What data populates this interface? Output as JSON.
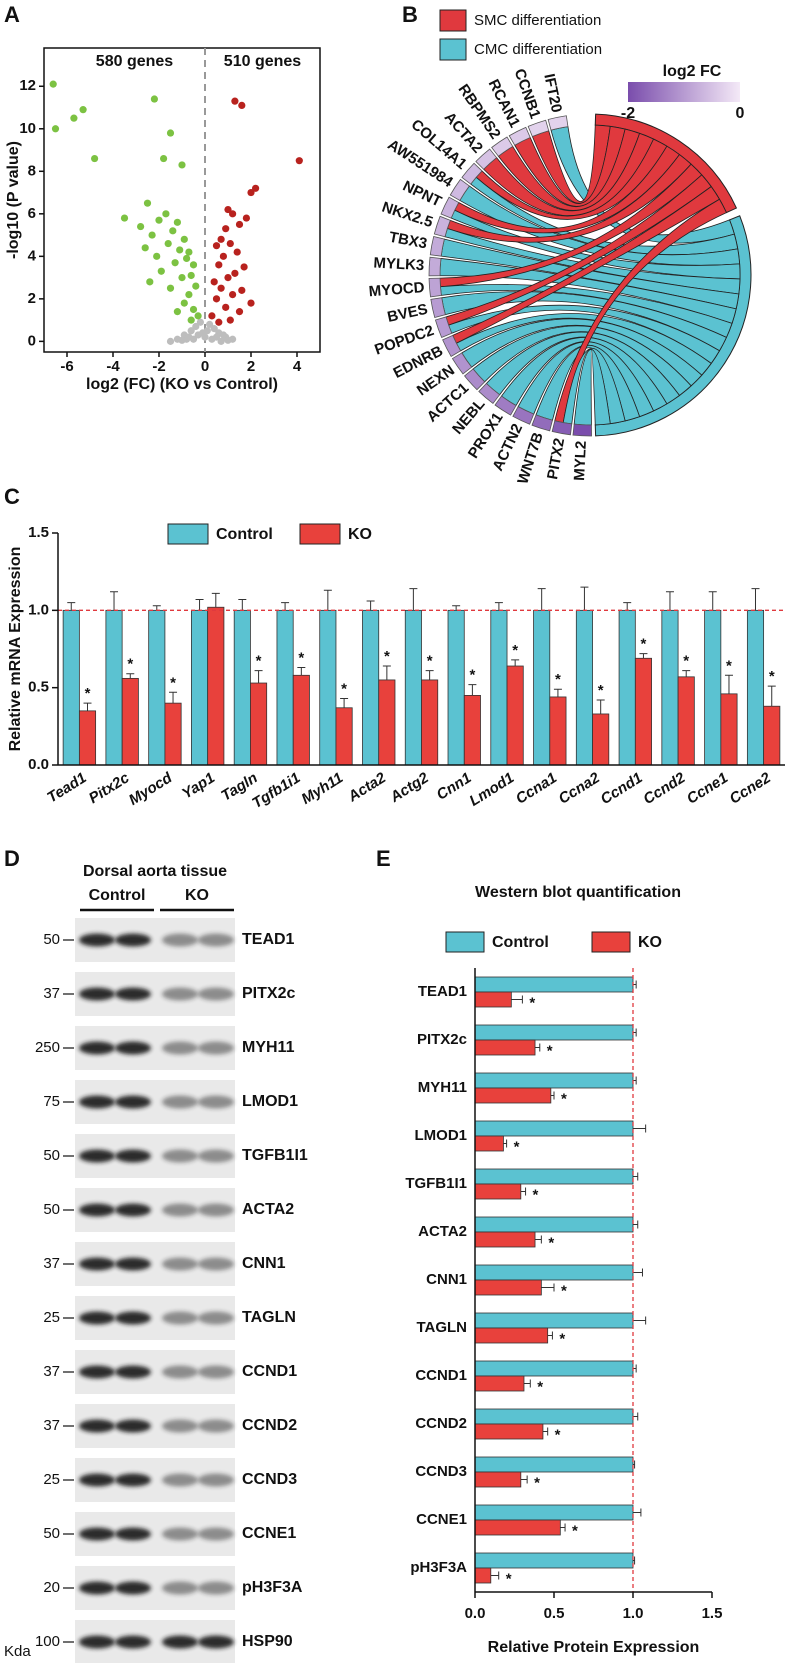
{
  "chart_data": [
    {
      "type": "scatter",
      "panel": "A",
      "xlabel": "log2 (FC) (KO vs Control)",
      "ylabel": "-log10 (P value)",
      "annotations": [
        "580 genes",
        "510 genes"
      ],
      "divider": 0,
      "xlim": [
        -7,
        5
      ],
      "ylim": [
        -0.5,
        13.8
      ],
      "xticks": [
        -6,
        -4,
        -2,
        0,
        2,
        4
      ],
      "yticks": [
        0,
        2,
        4,
        6,
        8,
        10,
        12
      ],
      "series": [
        {
          "color": "#bdbdbd",
          "x": [
            -1.2,
            -0.9,
            -0.6,
            -0.4,
            -0.2,
            0.0,
            0.2,
            0.4,
            0.6,
            0.9,
            1.2,
            -1.5,
            -0.8,
            -0.3,
            0.1,
            0.5,
            0.8,
            -0.5,
            0.3,
            -0.1,
            0.7,
            -0.7,
            1.0,
            -1.0
          ],
          "y": [
            0.1,
            0.3,
            0.5,
            0.7,
            0.9,
            0.2,
            0.8,
            0.6,
            0.4,
            0.2,
            0.1,
            0.0,
            0.1,
            0.3,
            0.5,
            0.2,
            0.3,
            0.1,
            0.1,
            0.4,
            0.0,
            0.2,
            0.05,
            0.05
          ]
        },
        {
          "color": "#7cc242",
          "x": [
            -6.6,
            -6.5,
            -5.7,
            -5.3,
            -4.8,
            -2.2,
            -1.5,
            -1.8,
            -1.0,
            -2.5,
            -3.5,
            -2.8,
            -2.3,
            -2.0,
            -1.7,
            -1.4,
            -1.2,
            -0.9,
            -0.7,
            -0.5,
            -2.6,
            -2.1,
            -1.6,
            -1.1,
            -0.8,
            -0.6,
            -0.4,
            -1.9,
            -1.3,
            -1.0,
            -0.7,
            -2.4,
            -1.5,
            -0.9,
            -0.5,
            -1.2,
            -0.6,
            -0.3
          ],
          "y": [
            12.1,
            10.0,
            10.5,
            10.9,
            8.6,
            11.4,
            9.8,
            8.6,
            8.3,
            6.5,
            5.8,
            5.4,
            5.0,
            5.7,
            6.0,
            5.2,
            5.6,
            4.8,
            4.2,
            3.6,
            4.4,
            4.0,
            4.6,
            4.3,
            3.9,
            3.1,
            2.6,
            3.3,
            3.7,
            3.0,
            2.2,
            2.8,
            2.5,
            1.8,
            1.5,
            1.4,
            1.0,
            1.2
          ]
        },
        {
          "color": "#b8221e",
          "x": [
            1.3,
            1.6,
            4.1,
            2.0,
            2.2,
            1.0,
            1.8,
            1.5,
            1.2,
            0.9,
            0.7,
            0.5,
            1.4,
            1.1,
            0.8,
            0.6,
            0.4,
            1.7,
            1.3,
            1.0,
            0.7,
            0.5,
            1.6,
            1.2,
            0.9,
            0.3,
            2.0,
            1.5,
            1.1,
            0.6
          ],
          "y": [
            11.3,
            11.1,
            8.5,
            7.0,
            7.2,
            6.2,
            5.8,
            5.5,
            6.0,
            5.3,
            4.8,
            4.5,
            4.2,
            4.6,
            4.0,
            3.6,
            2.8,
            3.5,
            3.2,
            3.0,
            2.5,
            2.0,
            2.4,
            2.2,
            1.6,
            1.2,
            1.8,
            1.4,
            1.0,
            0.9
          ]
        }
      ]
    },
    {
      "type": "chord",
      "panel": "B",
      "sets": [
        {
          "name": "SMC differentiation",
          "color": "#e0393e"
        },
        {
          "name": "CMC differentiation",
          "color": "#5bc2d1"
        }
      ],
      "genes": [
        "IFT20",
        "CCNB1",
        "RCAN1",
        "RBPMS2",
        "ACTA2",
        "COL14A1",
        "AW551984",
        "NPNT",
        "NKX2.5",
        "TBX3",
        "MYLK3",
        "MYOCD",
        "BVES",
        "POPDC2",
        "EDNRB",
        "NEXN",
        "ACTC1",
        "NEBL",
        "PROX1",
        "ACTN2",
        "WNT7B",
        "PITX2",
        "MYL2"
      ],
      "fc": [
        -0.3,
        -0.3,
        -0.4,
        -0.4,
        -0.5,
        -0.6,
        -0.6,
        -0.7,
        -0.7,
        -0.8,
        -0.8,
        -0.9,
        -1.0,
        -1.0,
        -1.1,
        -1.1,
        -1.2,
        -1.2,
        -1.4,
        -1.5,
        -1.6,
        -1.8,
        -2.0
      ],
      "memberships": [
        [
          1
        ],
        [
          0
        ],
        [
          0
        ],
        [
          0
        ],
        [
          0
        ],
        [
          0,
          1
        ],
        [
          1
        ],
        [
          0,
          1
        ],
        [
          0,
          1
        ],
        [
          1
        ],
        [
          1
        ],
        [
          0,
          1
        ],
        [
          1
        ],
        [
          0,
          1
        ],
        [
          0,
          1
        ],
        [
          1
        ],
        [
          1
        ],
        [
          1
        ],
        [
          1
        ],
        [
          1
        ],
        [
          1
        ],
        [
          0,
          1
        ],
        [
          1
        ]
      ],
      "highlight": [
        11,
        21
      ],
      "highlight_color": "#e0393e",
      "colorbar": {
        "title": "log2 FC",
        "range": [
          -2,
          0
        ],
        "ticks": [
          -2,
          0
        ],
        "colors": [
          "#7a4dac",
          "#f4e9f7"
        ]
      }
    },
    {
      "type": "bar",
      "panel": "C",
      "ylabel": "Relative mRNA Expression",
      "categories": [
        "Tead1",
        "Pitx2c",
        "Myocd",
        "Yap1",
        "Tagln",
        "Tgfb1i1",
        "Myh11",
        "Acta2",
        "Actg2",
        "Cnn1",
        "Lmod1",
        "Ccna1",
        "Ccna2",
        "Ccnd1",
        "Ccnd2",
        "Ccne1",
        "Ccne2"
      ],
      "series": [
        {
          "name": "Control",
          "color": "#5bc2d1",
          "values": [
            1,
            1,
            1,
            1,
            1,
            1,
            1,
            1,
            1,
            1,
            1,
            1,
            1,
            1,
            1,
            1,
            1
          ],
          "errors": [
            0.05,
            0.12,
            0.03,
            0.07,
            0.07,
            0.05,
            0.13,
            0.06,
            0.14,
            0.03,
            0.05,
            0.14,
            0.15,
            0.05,
            0.12,
            0.12,
            0.14
          ]
        },
        {
          "name": "KO",
          "color": "#e8413c",
          "values": [
            0.35,
            0.56,
            0.4,
            1.02,
            0.53,
            0.58,
            0.37,
            0.55,
            0.55,
            0.45,
            0.64,
            0.44,
            0.33,
            0.69,
            0.57,
            0.46,
            0.38
          ],
          "errors": [
            0.05,
            0.03,
            0.07,
            0.09,
            0.08,
            0.05,
            0.06,
            0.09,
            0.06,
            0.07,
            0.04,
            0.05,
            0.09,
            0.03,
            0.04,
            0.12,
            0.13
          ]
        }
      ],
      "stars": [
        "*",
        "*",
        "*",
        null,
        "*",
        "*",
        "*",
        "*",
        "*",
        "*",
        "*",
        "*",
        "*",
        "*",
        "*",
        "*",
        "*"
      ],
      "ylim": [
        0,
        1.5
      ],
      "yticks": [
        {
          "value": 0,
          "label": "0.0"
        },
        {
          "value": 0.5,
          "label": "0.5"
        },
        {
          "value": 1,
          "label": "1.0"
        },
        {
          "value": 1.5,
          "label": "1.5"
        }
      ],
      "refline": 1,
      "refline_color": "#e0393e"
    },
    {
      "type": "barh",
      "panel": "E",
      "title": "Western blot quantification",
      "xlabel": "Relative Protein Expression",
      "categories": [
        "TEAD1",
        "PITX2c",
        "MYH11",
        "LMOD1",
        "TGFB1I1",
        "ACTA2",
        "CNN1",
        "TAGLN",
        "CCND1",
        "CCND2",
        "CCND3",
        "CCNE1",
        "pH3F3A"
      ],
      "series": [
        {
          "name": "Control",
          "color": "#5bc2d1",
          "values": [
            1,
            1,
            1,
            1,
            1,
            1,
            1,
            1,
            1,
            1,
            1,
            1,
            1
          ],
          "errors": [
            0.02,
            0.02,
            0.02,
            0.08,
            0.03,
            0.03,
            0.06,
            0.08,
            0.02,
            0.03,
            0.01,
            0.05,
            0.01
          ]
        },
        {
          "name": "KO",
          "color": "#e8413c",
          "values": [
            0.23,
            0.38,
            0.48,
            0.18,
            0.29,
            0.38,
            0.42,
            0.46,
            0.31,
            0.43,
            0.29,
            0.54,
            0.1
          ],
          "errors": [
            0.07,
            0.03,
            0.02,
            0.02,
            0.03,
            0.04,
            0.08,
            0.03,
            0.04,
            0.03,
            0.04,
            0.03,
            0.05
          ]
        }
      ],
      "stars": [
        "*",
        "*",
        "*",
        "*",
        "*",
        "*",
        "*",
        "*",
        "*",
        "*",
        "*",
        "*",
        "*"
      ],
      "xlim": [
        0,
        1.5
      ],
      "xticks": [
        {
          "value": 0,
          "label": "0.0"
        },
        {
          "value": 0.5,
          "label": "0.5"
        },
        {
          "value": 1,
          "label": "1.0"
        },
        {
          "value": 1.5,
          "label": "1.5"
        }
      ],
      "refline": 1,
      "refline_color": "#e0393e"
    }
  ],
  "blot": {
    "panel": "D",
    "title": "Dorsal aorta tissue",
    "groups": [
      "Control",
      "KO"
    ],
    "unit": "Kda",
    "rows": [
      {
        "marker": "50",
        "label": "TEAD1"
      },
      {
        "marker": "37",
        "label": "PITX2c"
      },
      {
        "marker": "250",
        "label": "MYH11"
      },
      {
        "marker": "75",
        "label": "LMOD1"
      },
      {
        "marker": "50",
        "label": "TGFB1I1"
      },
      {
        "marker": "50",
        "label": "ACTA2"
      },
      {
        "marker": "37",
        "label": "CNN1"
      },
      {
        "marker": "25",
        "label": "TAGLN"
      },
      {
        "marker": "37",
        "label": "CCND1"
      },
      {
        "marker": "37",
        "label": "CCND2"
      },
      {
        "marker": "25",
        "label": "CCND3"
      },
      {
        "marker": "50",
        "label": "CCNE1"
      },
      {
        "marker": "20",
        "label": "pH3F3A"
      },
      {
        "marker": "100",
        "label": "HSP90"
      }
    ]
  }
}
